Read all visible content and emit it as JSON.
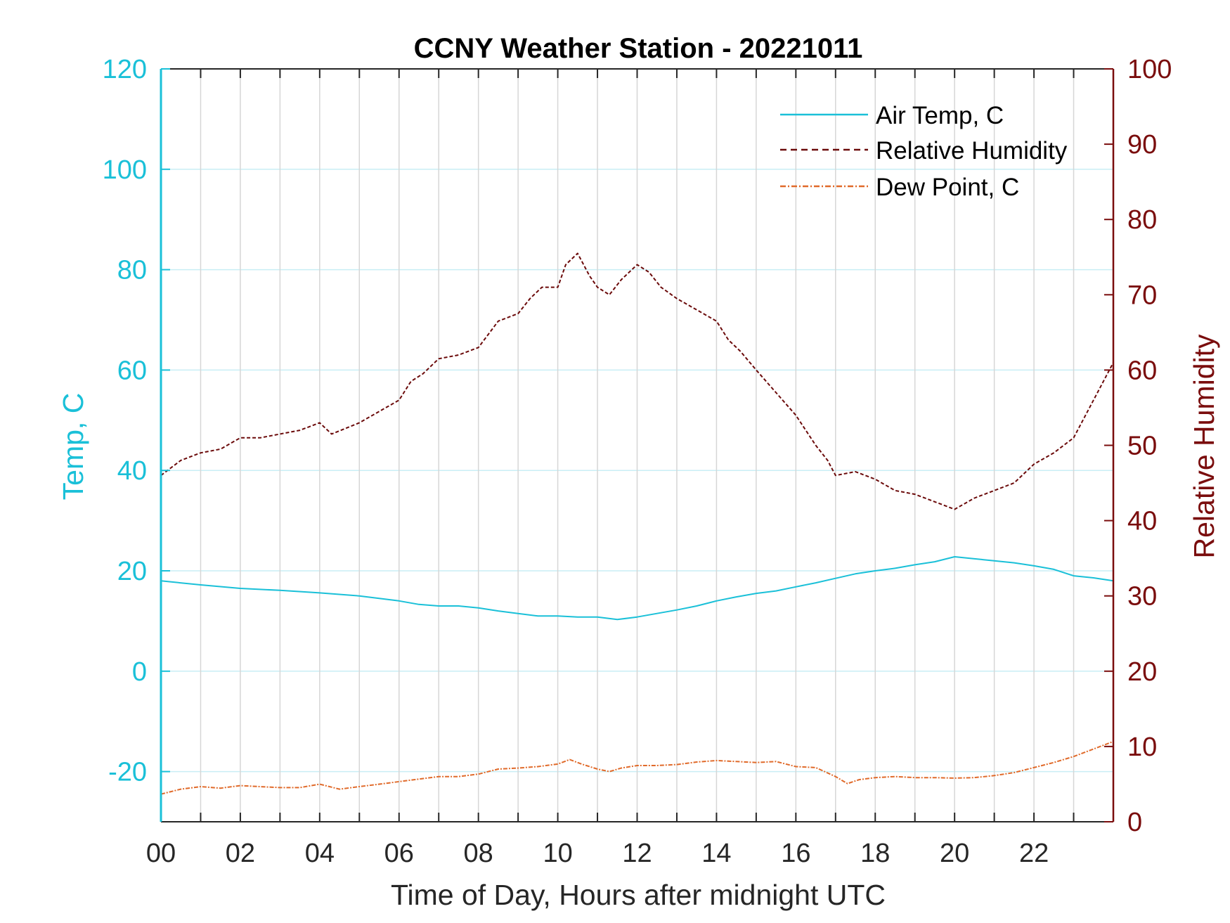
{
  "chart_data": {
    "type": "line",
    "title": "CCNY Weather Station - 20221011",
    "xlabel": "Time of Day, Hours after midnight UTC",
    "ylabel_left": "Temp, C",
    "ylabel_right": "Relative Humidity",
    "xlim": [
      0,
      24
    ],
    "ylim_left": [
      -30,
      120
    ],
    "ylim_right": [
      0,
      100
    ],
    "x_ticks": [
      0,
      2,
      4,
      6,
      8,
      10,
      12,
      14,
      16,
      18,
      20,
      22
    ],
    "x_tick_labels": [
      "00",
      "02",
      "04",
      "06",
      "08",
      "10",
      "12",
      "14",
      "16",
      "18",
      "20",
      "22"
    ],
    "y_left_ticks": [
      -20,
      0,
      20,
      40,
      60,
      80,
      100,
      120
    ],
    "y_left_tick_labels": [
      "-20",
      "0",
      "20",
      "40",
      "60",
      "80",
      "100",
      "120"
    ],
    "y_right_ticks": [
      0,
      10,
      20,
      30,
      40,
      50,
      60,
      70,
      80,
      90,
      100
    ],
    "y_right_tick_labels": [
      "0",
      "10",
      "20",
      "30",
      "40",
      "50",
      "60",
      "70",
      "80",
      "90",
      "100"
    ],
    "grid": true,
    "legend_position": "top-right",
    "colors": {
      "left_axis": "#1ac0d8",
      "right_axis": "#7a0d0d",
      "air_temp": "#1ac0d8",
      "humidity": "#6b0a0a",
      "dew_point": "#e06a2a",
      "vgrid": "#d6d6d6",
      "hgrid": "#c9eef5"
    },
    "series": [
      {
        "name": "Air Temp, C",
        "axis": "left",
        "style": "solid",
        "x": [
          0,
          1,
          2,
          3,
          4,
          5,
          6,
          6.5,
          7,
          7.5,
          8,
          8.5,
          9,
          9.5,
          10,
          10.5,
          11,
          11.5,
          12,
          12.5,
          13,
          13.5,
          14,
          14.5,
          15,
          15.5,
          16,
          16.5,
          17,
          17.5,
          18,
          18.5,
          19,
          19.5,
          20,
          20.5,
          21,
          21.5,
          22,
          22.5,
          23,
          23.5,
          24
        ],
        "y": [
          18,
          17.2,
          16.5,
          16.1,
          15.6,
          15,
          14,
          13.3,
          13,
          13,
          12.6,
          12,
          11.5,
          11,
          11,
          10.8,
          10.8,
          10.3,
          10.8,
          11.5,
          12.2,
          13,
          14,
          14.8,
          15.5,
          16,
          16.8,
          17.6,
          18.5,
          19.4,
          20,
          20.5,
          21.2,
          21.8,
          22.8,
          22.4,
          22,
          21.6,
          21,
          20.3,
          19,
          18.6,
          18
        ]
      },
      {
        "name": "Relative Humidity",
        "axis": "right",
        "style": "dashed",
        "x": [
          0,
          0.5,
          1,
          1.5,
          2,
          2.5,
          3,
          3.5,
          4,
          4.3,
          5,
          5.5,
          6,
          6.3,
          6.6,
          7,
          7.5,
          8,
          8.5,
          9,
          9.3,
          9.6,
          10,
          10.2,
          10.5,
          10.8,
          11,
          11.3,
          11.6,
          12,
          12.3,
          12.6,
          13,
          13.5,
          14,
          14.3,
          14.6,
          15,
          15.5,
          16,
          16.5,
          16.8,
          17,
          17.5,
          18,
          18.5,
          19,
          19.5,
          20,
          20.5,
          21,
          21.5,
          22,
          22.5,
          23,
          23.5,
          24
        ],
        "y": [
          46,
          48,
          49,
          49.5,
          51,
          51,
          51.5,
          52,
          53,
          51.5,
          53,
          54.5,
          56,
          58.5,
          59.5,
          61.5,
          62,
          63,
          66.5,
          67.5,
          69.5,
          71,
          71,
          74,
          75.5,
          72.5,
          71,
          70,
          72,
          74,
          73,
          71,
          69.5,
          68,
          66.5,
          64,
          62.5,
          60,
          57,
          54,
          50,
          48,
          46,
          46.5,
          45.5,
          44,
          43.5,
          42.5,
          41.5,
          43,
          44,
          45,
          47.5,
          49,
          51,
          56,
          61
        ]
      },
      {
        "name": "Dew Point, C",
        "axis": "left",
        "style": "dashdot",
        "x": [
          0,
          0.5,
          1,
          1.5,
          2,
          2.5,
          3,
          3.5,
          4,
          4.5,
          5,
          5.5,
          6,
          6.5,
          7,
          7.5,
          8,
          8.5,
          9,
          9.5,
          10,
          10.3,
          10.6,
          11,
          11.3,
          11.6,
          12,
          12.5,
          13,
          13.5,
          14,
          14.5,
          15,
          15.5,
          16,
          16.5,
          17,
          17.3,
          17.6,
          18,
          18.5,
          19,
          19.5,
          20,
          20.5,
          21,
          21.5,
          22,
          22.5,
          23,
          23.5,
          24
        ],
        "y": [
          -24.5,
          -23.5,
          -23,
          -23.3,
          -22.8,
          -23,
          -23.2,
          -23.2,
          -22.5,
          -23.5,
          -23,
          -22.5,
          -22,
          -21.5,
          -21,
          -21,
          -20.5,
          -19.5,
          -19.3,
          -19,
          -18.5,
          -17.6,
          -18.5,
          -19.5,
          -20,
          -19.3,
          -18.8,
          -18.8,
          -18.6,
          -18.1,
          -17.8,
          -18,
          -18.2,
          -18,
          -19,
          -19.2,
          -21,
          -22.4,
          -21.6,
          -21.2,
          -21,
          -21.2,
          -21.2,
          -21.3,
          -21.2,
          -20.8,
          -20.2,
          -19.2,
          -18.2,
          -17,
          -15.5,
          -14
        ]
      }
    ]
  }
}
